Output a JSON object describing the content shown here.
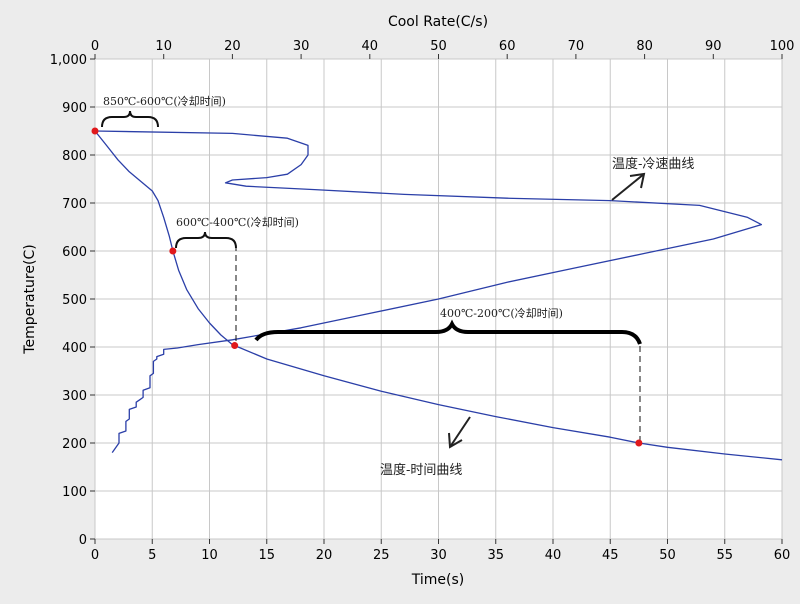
{
  "chart_data": {
    "type": "line",
    "xlabel": "Time(s)",
    "x2label": "Cool Rate(C/s)",
    "ylabel": "Temperature(C)",
    "xlim": [
      0,
      60
    ],
    "x2lim": [
      0,
      100
    ],
    "ylim": [
      0,
      1000
    ],
    "grid": true,
    "x_ticks": [
      "0",
      "5",
      "10",
      "15",
      "20",
      "25",
      "30",
      "35",
      "40",
      "45",
      "50",
      "55",
      "60"
    ],
    "x2_ticks": [
      "0",
      "10",
      "20",
      "30",
      "40",
      "50",
      "60",
      "70",
      "80",
      "90",
      "100"
    ],
    "y_ticks": [
      "0",
      "100",
      "200",
      "300",
      "400",
      "500",
      "600",
      "700",
      "800",
      "900",
      "1,000"
    ],
    "series": [
      {
        "name": "温度-时间曲线",
        "axis": "x",
        "color": "#2b3fa8",
        "points": [
          [
            0,
            850
          ],
          [
            1,
            820
          ],
          [
            2,
            790
          ],
          [
            3,
            765
          ],
          [
            4,
            745
          ],
          [
            5,
            725
          ],
          [
            5.5,
            705
          ],
          [
            6,
            670
          ],
          [
            6.5,
            630
          ],
          [
            6.8,
            600
          ],
          [
            7.3,
            560
          ],
          [
            8,
            520
          ],
          [
            9,
            480
          ],
          [
            10,
            450
          ],
          [
            11,
            425
          ],
          [
            12,
            405
          ],
          [
            15,
            375
          ],
          [
            20,
            340
          ],
          [
            25,
            308
          ],
          [
            30,
            280
          ],
          [
            35,
            255
          ],
          [
            40,
            232
          ],
          [
            45,
            212
          ],
          [
            47.5,
            200
          ],
          [
            50,
            191
          ],
          [
            55,
            177
          ],
          [
            60,
            165
          ]
        ]
      },
      {
        "name": "温度-冷速曲线",
        "axis": "x2",
        "color": "#2b3fa8",
        "points": [
          [
            2.5,
            180
          ],
          [
            3.5,
            200
          ],
          [
            3.5,
            220
          ],
          [
            4.5,
            225
          ],
          [
            4.5,
            245
          ],
          [
            5,
            250
          ],
          [
            5,
            270
          ],
          [
            6,
            275
          ],
          [
            6,
            285
          ],
          [
            6.5,
            290
          ],
          [
            7,
            295
          ],
          [
            7,
            310
          ],
          [
            8,
            315
          ],
          [
            8,
            340
          ],
          [
            8.5,
            345
          ],
          [
            8.5,
            370
          ],
          [
            9,
            375
          ],
          [
            9,
            380
          ],
          [
            10,
            385
          ],
          [
            10,
            395
          ],
          [
            12,
            398
          ],
          [
            15,
            405
          ],
          [
            20,
            415
          ],
          [
            30,
            440
          ],
          [
            40,
            470
          ],
          [
            50,
            500
          ],
          [
            60,
            535
          ],
          [
            70,
            565
          ],
          [
            80,
            595
          ],
          [
            90,
            625
          ],
          [
            97,
            655
          ],
          [
            95,
            670
          ],
          [
            88,
            695
          ],
          [
            75,
            705
          ],
          [
            60,
            710
          ],
          [
            45,
            718
          ],
          [
            32,
            728
          ],
          [
            22,
            735
          ],
          [
            19,
            742
          ],
          [
            20,
            748
          ],
          [
            25,
            753
          ],
          [
            28,
            760
          ],
          [
            30,
            780
          ],
          [
            31,
            800
          ],
          [
            31,
            820
          ],
          [
            28,
            835
          ],
          [
            20,
            845
          ],
          [
            0,
            850
          ]
        ]
      }
    ],
    "points_highlighted": [
      [
        0,
        850
      ],
      [
        6.8,
        600
      ],
      [
        12.2,
        403
      ],
      [
        47.5,
        200
      ]
    ],
    "annotations": {
      "a1": "850℃-600℃(冷却时间)",
      "a2": "600℃-400℃(冷却时间)",
      "a3": "400℃-200℃(冷却时间)",
      "label_time_curve": "温度-时间曲线",
      "label_rate_curve": "温度-冷速曲线"
    }
  }
}
